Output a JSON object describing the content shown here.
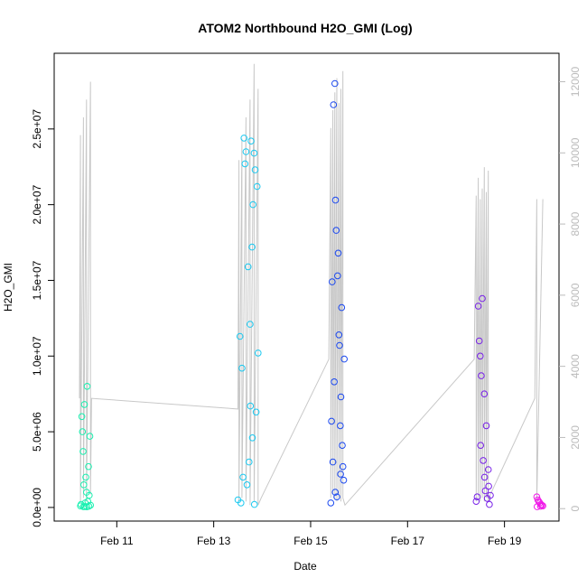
{
  "chart_data": {
    "type": "scatter",
    "title": "ATOM2 Northbound H2O_GMI (Log)",
    "xlabel": "Date",
    "ylabel": "H2O_GMI",
    "xlim": [
      "2016-02-09T17:00",
      "2016-02-20T03:00"
    ],
    "ylim": [
      -900000,
      30000000
    ],
    "x_ticks": [
      {
        "date": "2016-02-11T00:00",
        "label": "Feb 11"
      },
      {
        "date": "2016-02-13T00:00",
        "label": "Feb 13"
      },
      {
        "date": "2016-02-15T00:00",
        "label": "Feb 15"
      },
      {
        "date": "2016-02-17T00:00",
        "label": "Feb 17"
      },
      {
        "date": "2016-02-19T00:00",
        "label": "Feb 19"
      }
    ],
    "y_ticks": [
      {
        "value": 0,
        "label": "0.0e+00"
      },
      {
        "value": 5000000,
        "label": "5.0e+06"
      },
      {
        "value": 10000000,
        "label": "1.0e+07"
      },
      {
        "value": 15000000,
        "label": "1.5e+07"
      },
      {
        "value": 20000000,
        "label": "2.0e+07"
      },
      {
        "value": 25000000,
        "label": "2.5e+07"
      }
    ],
    "secondary_axis": {
      "side": "right",
      "color": "#bbbbbb",
      "ylim": [
        -350,
        12800
      ],
      "ticks": [
        {
          "value": 0,
          "label": "0"
        },
        {
          "value": 2000,
          "label": "2000"
        },
        {
          "value": 4000,
          "label": "4000"
        },
        {
          "value": 6000,
          "label": "6000"
        },
        {
          "value": 8000,
          "label": "8000"
        },
        {
          "value": 10000,
          "label": "10000"
        },
        {
          "value": 12000,
          "label": "12000"
        }
      ]
    },
    "grid": false,
    "legend": "none",
    "line_color": "#c8c8c8",
    "series": [
      {
        "color": "#19f0b0",
        "x": [
          "2016-02-10T06:00",
          "2016-02-10T06:20",
          "2016-02-10T06:40",
          "2016-02-10T07:00",
          "2016-02-10T07:20",
          "2016-02-10T07:40",
          "2016-02-10T08:00",
          "2016-02-10T08:20",
          "2016-02-10T08:40",
          "2016-02-10T09:00",
          "2016-02-10T09:20",
          "2016-02-10T09:40",
          "2016-02-10T10:00",
          "2016-02-10T10:20",
          "2016-02-10T10:40",
          "2016-02-10T11:00",
          "2016-02-10T07:30",
          "2016-02-10T08:10",
          "2016-02-10T09:10",
          "2016-02-10T10:10"
        ],
        "y": [
          100000,
          200000,
          6000000,
          5000000,
          3700000,
          1500000,
          6800000,
          300000,
          2000000,
          1000000,
          8000000,
          400000,
          2700000,
          800000,
          4700000,
          150000,
          50000,
          60000,
          40000,
          80000
        ]
      },
      {
        "color": "#19c8f0",
        "x": [
          "2016-02-13T12:00",
          "2016-02-13T13:00",
          "2016-02-13T14:00",
          "2016-02-13T15:00",
          "2016-02-13T16:00",
          "2016-02-13T17:00",
          "2016-02-13T18:00",
          "2016-02-13T19:00",
          "2016-02-13T20:00",
          "2016-02-13T21:00",
          "2016-02-13T22:00",
          "2016-02-13T14:30",
          "2016-02-13T15:30",
          "2016-02-13T16:30",
          "2016-02-13T17:30",
          "2016-02-13T18:30",
          "2016-02-13T19:30",
          "2016-02-13T20:30",
          "2016-02-13T21:30",
          "2016-02-13T13:30",
          "2016-02-13T18:10",
          "2016-02-13T19:10",
          "2016-02-13T20:10"
        ],
        "y": [
          500000,
          11300000,
          9200000,
          24400000,
          23500000,
          15900000,
          12100000,
          17200000,
          23400000,
          6300000,
          10200000,
          2000000,
          22700000,
          1500000,
          3000000,
          24200000,
          20000000,
          22300000,
          21200000,
          300000,
          6700000,
          4600000,
          200000
        ]
      },
      {
        "color": "#1a48f0",
        "x": [
          "2016-02-15T10:00",
          "2016-02-15T10:40",
          "2016-02-15T11:20",
          "2016-02-15T12:00",
          "2016-02-15T12:40",
          "2016-02-15T13:20",
          "2016-02-15T14:00",
          "2016-02-15T14:40",
          "2016-02-15T15:20",
          "2016-02-15T16:00",
          "2016-02-15T16:40",
          "2016-02-15T11:00",
          "2016-02-15T12:20",
          "2016-02-15T13:40",
          "2016-02-15T15:00",
          "2016-02-15T11:40",
          "2016-02-15T13:00",
          "2016-02-15T14:20",
          "2016-02-15T15:40",
          "2016-02-15T10:20",
          "2016-02-15T16:20",
          "2016-02-15T12:10",
          "2016-02-15T14:50"
        ],
        "y": [
          300000,
          14900000,
          26600000,
          28000000,
          18300000,
          15300000,
          11400000,
          5400000,
          13200000,
          2700000,
          9800000,
          3000000,
          20300000,
          16800000,
          7300000,
          8300000,
          700000,
          10700000,
          4100000,
          5700000,
          1800000,
          1000000,
          2200000
        ]
      },
      {
        "color": "#7820e8",
        "x": [
          "2016-02-18T10:00",
          "2016-02-18T11:00",
          "2016-02-18T12:00",
          "2016-02-18T13:00",
          "2016-02-18T14:00",
          "2016-02-18T15:00",
          "2016-02-18T16:00",
          "2016-02-18T17:00",
          "2016-02-18T11:30",
          "2016-02-18T12:30",
          "2016-02-18T13:30",
          "2016-02-18T14:30",
          "2016-02-18T15:30",
          "2016-02-18T16:30",
          "2016-02-18T10:30",
          "2016-02-18T12:10",
          "2016-02-18T14:10",
          "2016-02-18T16:10"
        ],
        "y": [
          400000,
          13300000,
          10000000,
          13800000,
          7500000,
          5400000,
          2500000,
          800000,
          11000000,
          8700000,
          3100000,
          1100000,
          600000,
          200000,
          700000,
          4100000,
          2000000,
          1400000
        ]
      },
      {
        "color": "#f019e8",
        "x": [
          "2016-02-19T16:00",
          "2016-02-19T17:00",
          "2016-02-19T18:00",
          "2016-02-19T19:00",
          "2016-02-19T16:30",
          "2016-02-19T17:30",
          "2016-02-19T18:30",
          "2016-02-19T16:10",
          "2016-02-19T17:50"
        ],
        "y": [
          700000,
          400000,
          200000,
          100000,
          500000,
          300000,
          150000,
          50000,
          80000
        ]
      }
    ],
    "secondary_line": {
      "x": [
        "2016-02-10T05:30",
        "2016-02-10T06:00",
        "2016-02-10T06:00",
        "2016-02-10T07:30",
        "2016-02-10T07:30",
        "2016-02-10T09:00",
        "2016-02-10T09:00",
        "2016-02-10T11:00",
        "2016-02-10T11:00",
        "2016-02-10T11:30",
        "2016-02-13T12:00",
        "2016-02-13T12:30",
        "2016-02-13T12:30",
        "2016-02-13T14:00",
        "2016-02-13T14:00",
        "2016-02-13T16:00",
        "2016-02-13T16:00",
        "2016-02-13T18:00",
        "2016-02-13T18:00",
        "2016-02-13T20:00",
        "2016-02-13T20:00",
        "2016-02-13T22:00",
        "2016-02-13T22:00",
        "2016-02-13T23:30",
        "2016-02-15T09:00",
        "2016-02-15T10:00",
        "2016-02-15T10:00",
        "2016-02-15T11:00",
        "2016-02-15T11:00",
        "2016-02-15T12:00",
        "2016-02-15T12:00",
        "2016-02-15T13:00",
        "2016-02-15T13:00",
        "2016-02-15T14:00",
        "2016-02-15T14:00",
        "2016-02-15T15:00",
        "2016-02-15T15:00",
        "2016-02-15T16:00",
        "2016-02-15T16:00",
        "2016-02-15T17:00",
        "2016-02-18T09:00",
        "2016-02-18T10:00",
        "2016-02-18T10:00",
        "2016-02-18T11:00",
        "2016-02-18T11:00",
        "2016-02-18T12:00",
        "2016-02-18T12:00",
        "2016-02-18T13:00",
        "2016-02-18T13:00",
        "2016-02-18T14:00",
        "2016-02-18T14:00",
        "2016-02-18T15:00",
        "2016-02-18T15:00",
        "2016-02-18T16:00",
        "2016-02-18T16:00",
        "2016-02-18T17:00",
        "2016-02-19T15:00",
        "2016-02-19T16:00",
        "2016-02-19T16:00",
        "2016-02-19T19:00"
      ],
      "y": [
        3100,
        10500,
        200,
        11000,
        300,
        11500,
        200,
        12000,
        400,
        3100,
        2800,
        9800,
        200,
        10400,
        300,
        11000,
        200,
        11500,
        100,
        12500,
        200,
        11800,
        100,
        300,
        4200,
        10700,
        300,
        11200,
        400,
        11700,
        300,
        12100,
        200,
        11400,
        300,
        11800,
        200,
        12300,
        300,
        100,
        4200,
        8800,
        200,
        9300,
        300,
        8700,
        200,
        9000,
        300,
        9600,
        200,
        8900,
        300,
        9500,
        200,
        400,
        3100,
        8700,
        200,
        8700
      ]
    }
  }
}
